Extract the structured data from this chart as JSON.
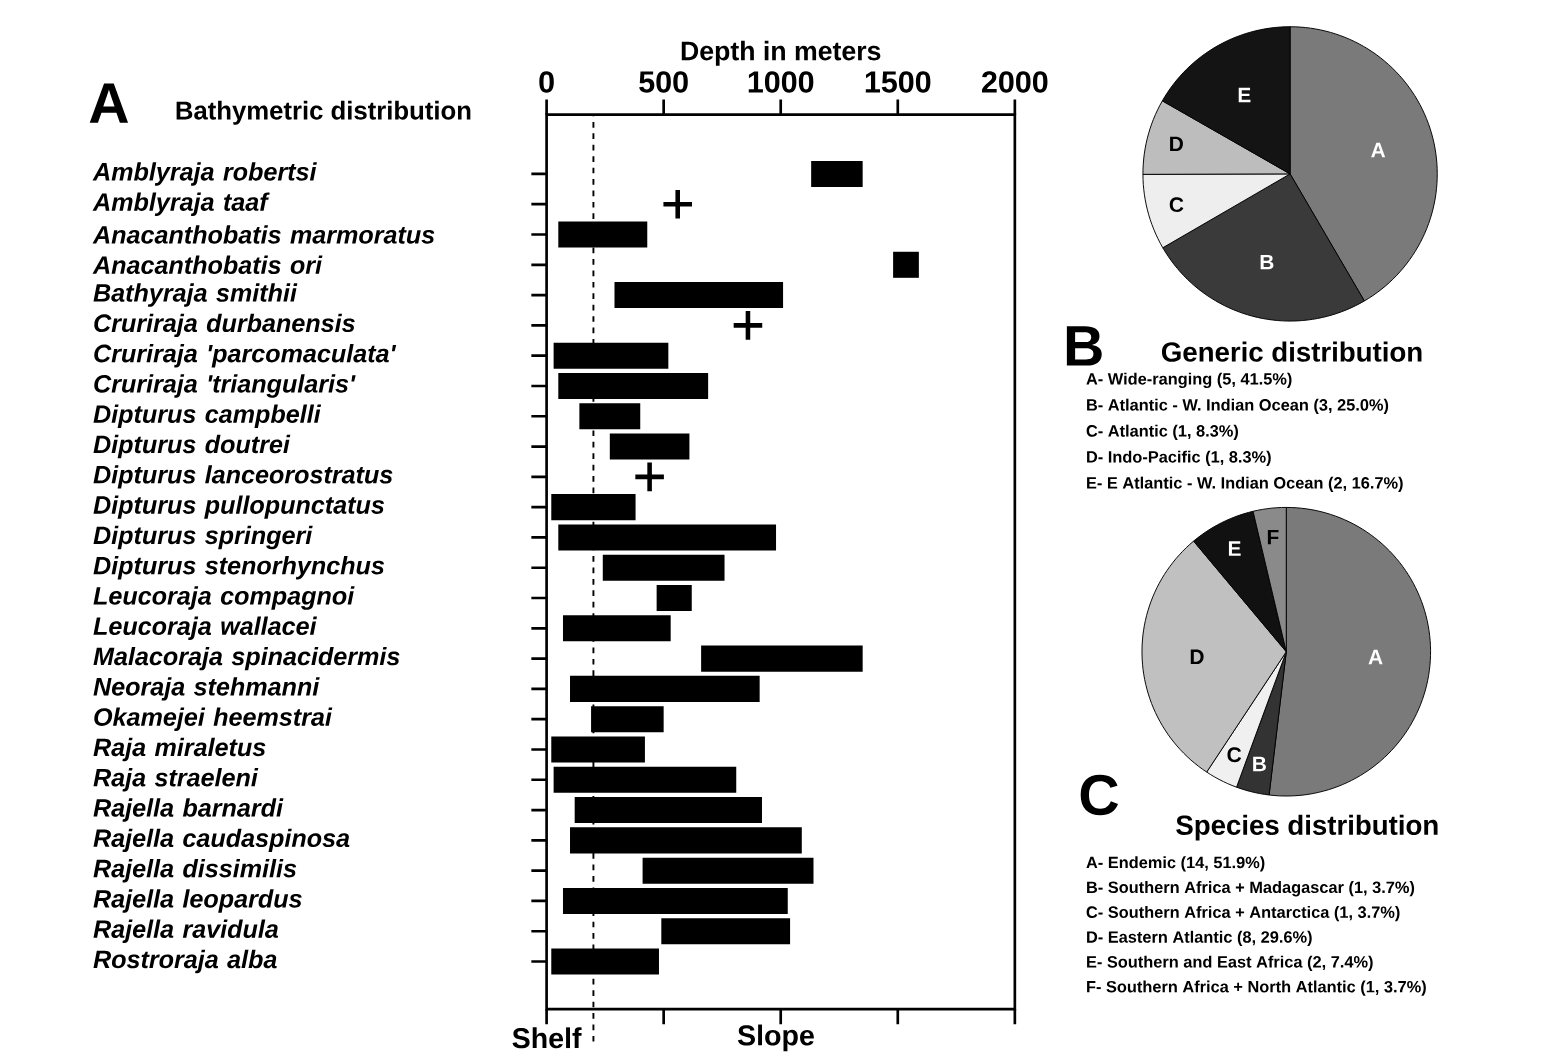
{
  "chart_data": [
    {
      "type": "bar",
      "orientation": "horizontal",
      "title": "Bathymetric distribution",
      "xlabel": "Depth in meters",
      "categories": [
        "Amblyraja robertsi",
        "Amblyraja taaf",
        "Anacanthobatis marmoratus",
        "Anacanthobatis ori",
        "Bathyraja smithii",
        "Cruriraja durbanensis",
        "Cruriraja 'parcomaculata'",
        "Cruriraja 'triangularis'",
        "Dipturus campbelli",
        "Dipturus doutrei",
        "Dipturus lanceorostratus",
        "Dipturus pullopunctatus",
        "Dipturus springeri",
        "Dipturus stenorhynchus",
        "Leucoraja compagnoi",
        "Leucoraja wallacei",
        "Malacoraja spinacidermis",
        "Neoraja stehmanni",
        "Okamejei heemstrai",
        "Raja miraletus",
        "Raja straeleni",
        "Rajella barnardi",
        "Rajella caudaspinosa",
        "Rajella dissimilis",
        "Rajella leopardus",
        "Rajella ravidula",
        "Rostroraja alba"
      ],
      "series": [
        {
          "type": "bar",
          "color": "#000000",
          "base": [
            1130,
            null,
            50,
            1480,
            290,
            null,
            30,
            50,
            140,
            270,
            null,
            20,
            50,
            240,
            470,
            70,
            660,
            100,
            190,
            20,
            30,
            120,
            100,
            410,
            70,
            490,
            20
          ],
          "values": [
            220,
            null,
            380,
            110,
            720,
            null,
            490,
            640,
            260,
            340,
            null,
            360,
            930,
            520,
            150,
            460,
            690,
            810,
            310,
            400,
            780,
            800,
            990,
            730,
            960,
            550,
            460
          ]
        },
        {
          "type": "scatter",
          "marker": "cross",
          "color": "#000000",
          "values": [
            null,
            560,
            null,
            null,
            null,
            860,
            null,
            null,
            null,
            null,
            440,
            null,
            null,
            null,
            null,
            null,
            null,
            null,
            null,
            null,
            null,
            null,
            null,
            null,
            null,
            null,
            null
          ]
        }
      ],
      "xlim": [
        0,
        2000
      ],
      "xticks": [
        0,
        500,
        1000,
        1500,
        2000
      ],
      "ref_lines": [
        {
          "axis": "x",
          "value": 200,
          "line_style": "dashed"
        }
      ],
      "annotations": [
        "A",
        "Shelf",
        "Slope"
      ]
    },
    {
      "type": "pie",
      "title": "Generic distribution",
      "categories": [
        "A",
        "B",
        "C",
        "D",
        "E"
      ],
      "values": [
        41.5,
        25.0,
        8.3,
        8.3,
        16.7
      ],
      "colors": [
        "#7a7a7a",
        "#3a3a3a",
        "#eeeeee",
        "#bdbdbd",
        "#141414"
      ],
      "annotations": [
        "B",
        "A- Wide-ranging (5, 41.5%)",
        "B- Atlantic - W. Indian Ocean (3, 25.0%)",
        "C- Atlantic (1, 8.3%)",
        "D- Indo-Pacific (1, 8.3%)",
        "E- E Atlantic - W. Indian Ocean (2, 16.7%)"
      ]
    },
    {
      "type": "pie",
      "title": "Species distribution",
      "categories": [
        "A",
        "B",
        "C",
        "D",
        "E",
        "F"
      ],
      "values": [
        51.9,
        3.7,
        3.7,
        29.6,
        7.4,
        3.7
      ],
      "colors": [
        "#7a7a7a",
        "#333333",
        "#f0f0f0",
        "#c0c0c0",
        "#111111",
        "#8a8a8a"
      ],
      "annotations": [
        "C",
        "A- Endemic (14, 51.9%)",
        "B- Southern Africa + Madagascar (1, 3.7%)",
        "C- Southern Africa + Antarctica (1, 3.7%)",
        "D- Eastern Atlantic (8, 29.6%)",
        "E- Southern and East Africa (2, 7.4%)",
        "F- Southern Africa + North Atlantic (1, 3.7%)"
      ]
    }
  ]
}
